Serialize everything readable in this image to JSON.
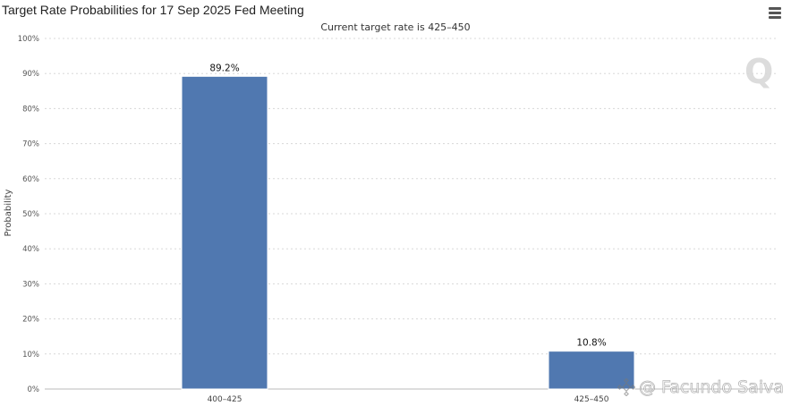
{
  "chart_data": {
    "type": "bar",
    "title": "Target Rate Probabilities for 17 Sep 2025 Fed Meeting",
    "subtitle": "Current target rate is 425–450",
    "xlabel": "",
    "ylabel": "Probability",
    "categories": [
      "400–425",
      "425–450"
    ],
    "values": [
      89.2,
      10.8
    ],
    "data_labels": [
      "89.2%",
      "10.8%"
    ],
    "ylim": [
      0,
      100
    ],
    "yticks": [
      "0%",
      "10%",
      "20%",
      "30%",
      "40%",
      "50%",
      "60%",
      "70%",
      "80%",
      "90%",
      "100%"
    ],
    "grid": true,
    "bar_color": "#5078b0",
    "grid_color": "#d8d8d8"
  },
  "toolbar": {
    "menu_icon": "hamburger-menu-icon"
  },
  "watermark": {
    "text": "@ Facundo Saiva",
    "logo_icon": "binance-logo-icon",
    "brand_mark": "Q"
  }
}
